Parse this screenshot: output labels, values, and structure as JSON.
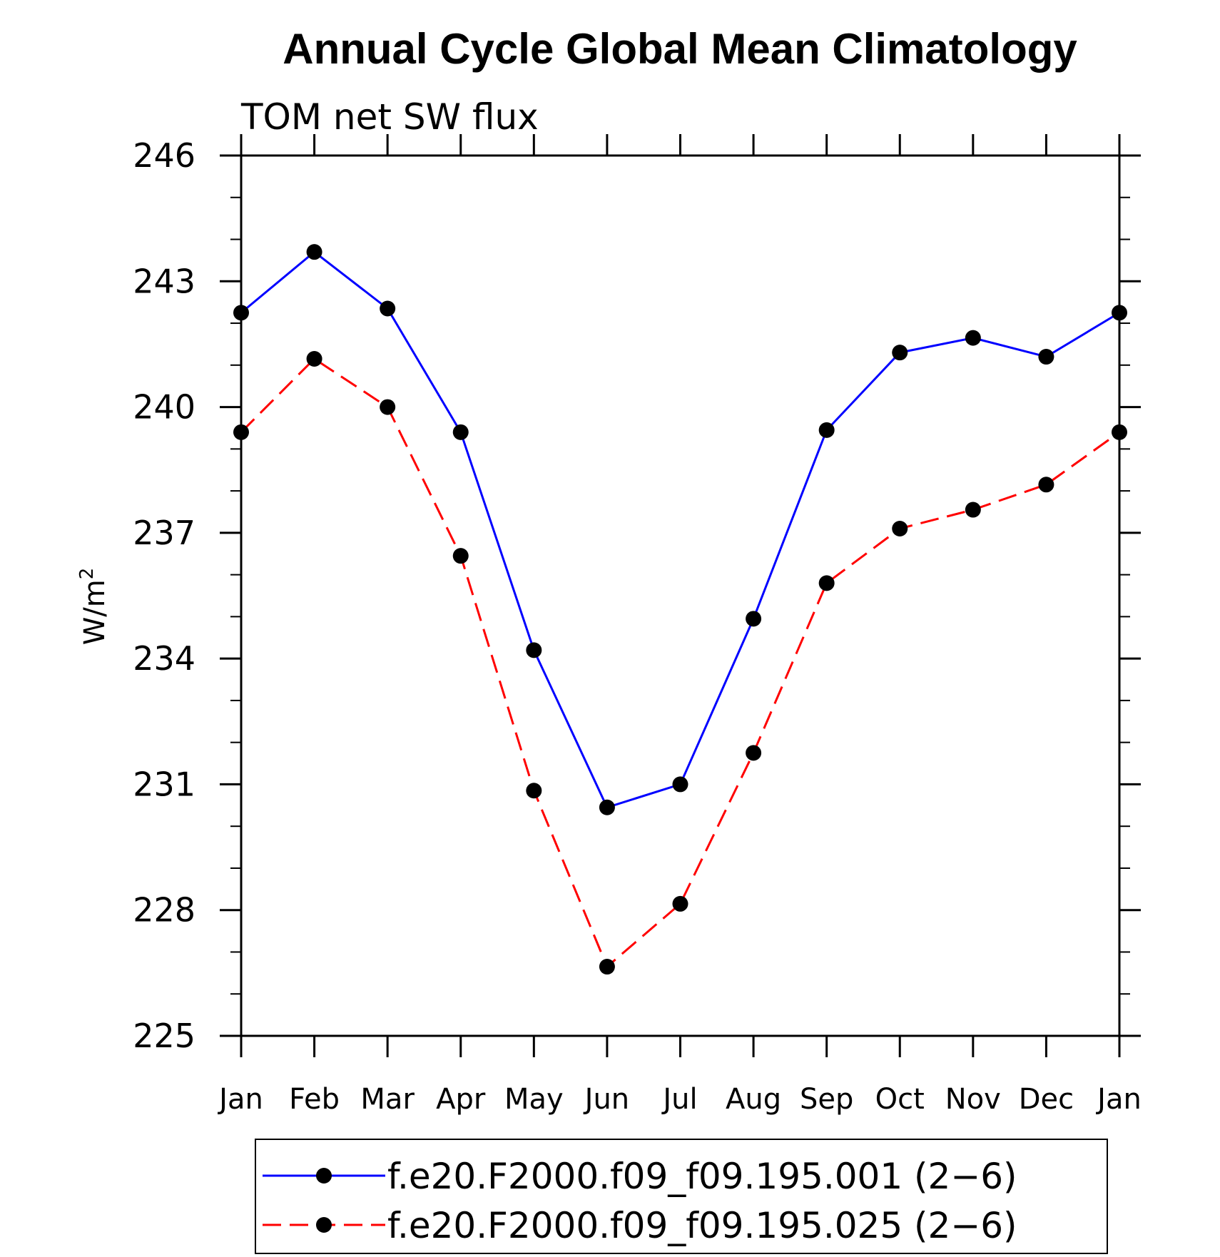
{
  "chart_data": {
    "type": "line",
    "title": "Annual Cycle Global Mean Climatology",
    "subtitle": "TOM net SW flux",
    "ylabel": "W/m",
    "ylabel_sup": "2",
    "ylim": [
      225,
      246
    ],
    "yticks": [
      "225",
      "228",
      "231",
      "234",
      "237",
      "240",
      "243",
      "246"
    ],
    "categories": [
      "Jan",
      "Feb",
      "Mar",
      "Apr",
      "May",
      "Jun",
      "Jul",
      "Aug",
      "Sep",
      "Oct",
      "Nov",
      "Dec",
      "Jan"
    ],
    "series": [
      {
        "name": "f.e20.F2000.f09_f09.195.001 (2−6)",
        "color": "#0000ff",
        "dash": "solid",
        "marker": "filled-circle",
        "values": [
          242.25,
          243.7,
          242.35,
          239.4,
          234.2,
          230.45,
          231.0,
          234.95,
          239.45,
          241.3,
          241.65,
          241.2,
          242.25
        ]
      },
      {
        "name": "f.e20.F2000.f09_f09.195.025 (2−6)",
        "color": "#ff0000",
        "dash": "dashed",
        "marker": "filled-circle",
        "values": [
          239.4,
          241.15,
          240.0,
          236.45,
          230.85,
          226.65,
          228.15,
          231.75,
          235.8,
          237.1,
          237.55,
          238.15,
          239.4
        ]
      }
    ],
    "grid": false,
    "legend_position": "bottom"
  }
}
